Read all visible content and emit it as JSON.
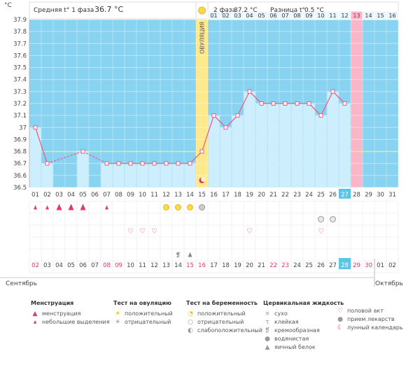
{
  "chart_data": {
    "type": "line",
    "header": {
      "phase1_label": "Средняя t° 1 фаза",
      "phase1_value": "36.7 °C",
      "phase2_label": "2 фаза",
      "phase2_value": "37.2 °C",
      "diff_label": "Разница t°",
      "diff_value": "0.5 °C"
    },
    "ylabel": "°C",
    "y_ticks": [
      "37.9",
      "37.8",
      "37.7",
      "37.6",
      "37.5",
      "37.4",
      "37.3",
      "37.2",
      "37.1",
      "37",
      "36.9",
      "36.8",
      "36.7",
      "36.6",
      "36.5"
    ],
    "ylim": [
      36.5,
      37.9
    ],
    "coverline": 36.8,
    "ovulation_label": "ОВУЛЯЦИЯ",
    "ovulation_day_index": 14,
    "period_marker_day_index": 27,
    "cycle_days": [
      "01",
      "02",
      "03",
      "04",
      "05",
      "06",
      "07",
      "08",
      "09",
      "10",
      "11",
      "12",
      "13",
      "14",
      "15",
      "16",
      "17",
      "18",
      "19",
      "20",
      "21",
      "22",
      "23",
      "24",
      "25",
      "26",
      "27",
      "28",
      "29",
      "30",
      "31"
    ],
    "phase2_days": [
      "01",
      "02",
      "03",
      "04",
      "05",
      "06",
      "07",
      "08",
      "09",
      "10",
      "11",
      "12",
      "13",
      "14",
      "15",
      "16"
    ],
    "temperatures": [
      37.0,
      36.7,
      null,
      null,
      36.8,
      null,
      36.7,
      36.7,
      36.7,
      36.7,
      36.7,
      36.7,
      36.7,
      36.7,
      36.8,
      37.1,
      37.0,
      37.1,
      37.3,
      37.2,
      37.2,
      37.2,
      37.2,
      37.2,
      37.1,
      37.3,
      37.2,
      null,
      null,
      null,
      null
    ],
    "dates": [
      "02",
      "03",
      "04",
      "05",
      "06",
      "07",
      "08",
      "09",
      "10",
      "11",
      "12",
      "13",
      "14",
      "15",
      "16",
      "17",
      "18",
      "19",
      "20",
      "21",
      "22",
      "23",
      "24",
      "25",
      "26",
      "27",
      "28",
      "29",
      "30",
      "01",
      "02"
    ],
    "red_date_indexes": [
      0,
      6,
      7,
      13,
      14,
      20,
      21,
      27,
      28
    ],
    "highlight_day_index": 26,
    "month_left": "Сентябрь",
    "month_right": "Октябрь",
    "symbols": {
      "menstruation_heavy": [
        2,
        3,
        4
      ],
      "menstruation_light": [
        0,
        1,
        6
      ],
      "ovulation_positive": [
        11,
        12,
        13
      ],
      "ovulation_negative": [
        14
      ],
      "intercourse": [
        8,
        9,
        10,
        18,
        24
      ],
      "pregnancy_weak": [
        24,
        25
      ],
      "cm_creamy": [
        12
      ],
      "cm_egg_white": [
        13
      ],
      "moon": [
        14
      ]
    },
    "colors": {
      "phase1_bg": "#87d3f1",
      "phase2_bg": "#daf1fc",
      "bar_fill": "#cdeefc",
      "line": "#ef5d8a",
      "ovulation_band": "#ffe98a",
      "period_band": "#f9b6c8",
      "coverline": "#e9ef7a",
      "day_highlight": "#5bc4ea",
      "red_text": "#e8336d"
    }
  },
  "legend": {
    "menstruation": {
      "title": "Менструация",
      "items": [
        {
          "label": "менструация",
          "icon": "drop-icon"
        },
        {
          "label": "небольшие выделения",
          "icon": "small-drop-icon"
        }
      ]
    },
    "ovulation_test": {
      "title": "Тест на овуляцию",
      "items": [
        {
          "label": "положительный",
          "icon": "sun-icon"
        },
        {
          "label": "отрицательный",
          "icon": "grey-sun-icon"
        }
      ]
    },
    "pregnancy_test": {
      "title": "Тест на беременность",
      "items": [
        {
          "label": "положительный",
          "icon": "positive-test-icon"
        },
        {
          "label": "отрицательный",
          "icon": "negative-test-icon"
        },
        {
          "label": "слабоположительный",
          "icon": "weak-test-icon"
        }
      ]
    },
    "cervical_fluid": {
      "title": "Цервикальная жидкость",
      "items": [
        {
          "label": "сухо",
          "icon": "dry-icon"
        },
        {
          "label": "клейкая",
          "icon": "sticky-icon"
        },
        {
          "label": "кремообразная",
          "icon": "creamy-icon"
        },
        {
          "label": "водянистая",
          "icon": "watery-icon"
        },
        {
          "label": "яичный белок",
          "icon": "egg-white-icon"
        }
      ]
    },
    "other": {
      "items": [
        {
          "label": "половой акт",
          "icon": "heart-icon"
        },
        {
          "label": "прием лекарств",
          "icon": "pill-icon"
        },
        {
          "label": "лунный календарь",
          "icon": "moon-icon"
        }
      ]
    }
  }
}
